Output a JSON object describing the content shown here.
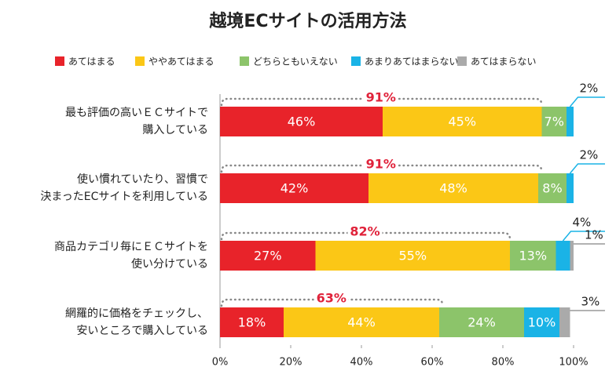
{
  "chart_data": {
    "type": "stacked-bar-horizontal",
    "title": "越境ECサイトの活用方法",
    "categories": [
      "最も評価の高いＥＣサイトで\n購入している",
      "使い慣れていたり、習慣で\n決まったECサイトを利用している",
      "商品カテゴリ毎にＥＣサイトを\n使い分けている",
      "網羅的に価格をチェックし、\n安いところで購入している"
    ],
    "series": [
      {
        "name": "あてはまる",
        "color": "#e8232a",
        "values": [
          46,
          42,
          27,
          18
        ],
        "value_labels": [
          "46%",
          "42%",
          "27%",
          "18%"
        ]
      },
      {
        "name": "ややあてはまる",
        "color": "#fbc716",
        "values": [
          45,
          48,
          55,
          44
        ],
        "value_labels": [
          "45%",
          "48%",
          "55%",
          "44%"
        ]
      },
      {
        "name": "どちらともいえない",
        "color": "#8cc46a",
        "values": [
          7,
          8,
          13,
          24
        ],
        "value_labels": [
          "7%",
          "8%",
          "13%",
          "24%"
        ]
      },
      {
        "name": "あまりあてはまらない",
        "color": "#1ab3e6",
        "values": [
          2,
          2,
          4,
          10
        ],
        "value_labels": [
          "2%",
          "2%",
          "4%",
          "10%"
        ]
      },
      {
        "name": "あてはまらない",
        "color": "#aaaaaa",
        "values": [
          0,
          0,
          1,
          3
        ],
        "value_labels": [
          null,
          null,
          "1%",
          "3%"
        ]
      }
    ],
    "top2": {
      "values": [
        91,
        91,
        82,
        63
      ],
      "value_labels": [
        "91%",
        "91%",
        "82%",
        "63%"
      ]
    },
    "xlim": [
      0,
      100
    ],
    "xticks": [
      {
        "value": 0,
        "label": "0%"
      },
      {
        "value": 20,
        "label": "20%"
      },
      {
        "value": 40,
        "label": "40%"
      },
      {
        "value": 60,
        "label": "60%"
      },
      {
        "value": 80,
        "label": "80%"
      },
      {
        "value": 100,
        "label": "100%"
      }
    ]
  }
}
